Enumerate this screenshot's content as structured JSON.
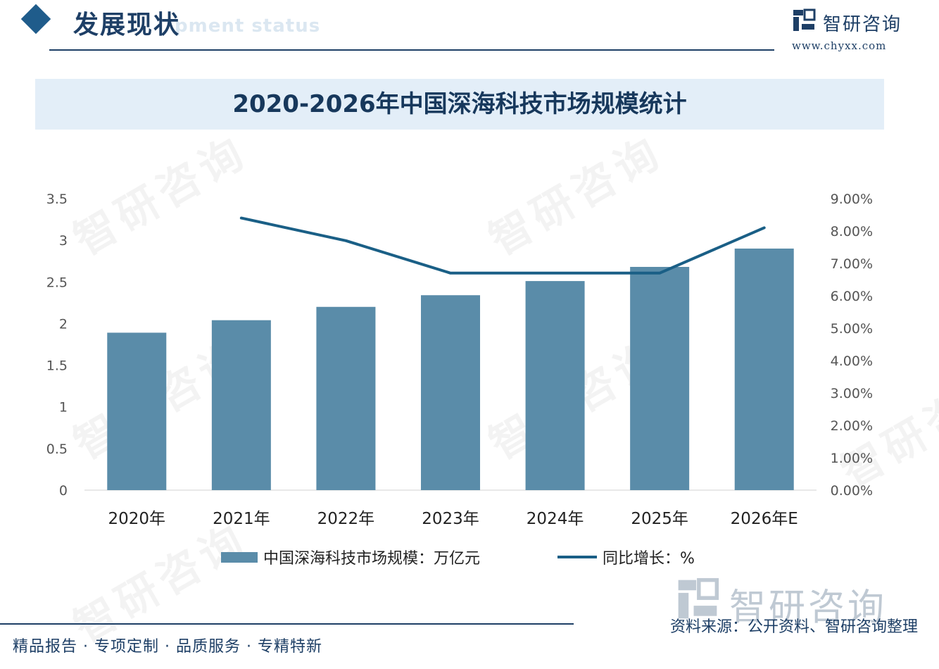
{
  "header": {
    "title": "发展现状",
    "subtitle_ghost": "pment status"
  },
  "logo": {
    "name": "智研咨询",
    "url": "www.chyxx.com"
  },
  "watermark": "智研咨询",
  "chart_data": {
    "type": "bar",
    "title": "2020-2026年中国深海科技市场规模统计",
    "categories": [
      "2020年",
      "2021年",
      "2022年",
      "2023年",
      "2024年",
      "2025年",
      "2026年E"
    ],
    "series": [
      {
        "name": "中国深海科技市场规模：万亿元",
        "type": "bar",
        "axis": "left",
        "values": [
          1.89,
          2.04,
          2.2,
          2.34,
          2.51,
          2.68,
          2.9
        ],
        "color": "#5a8ca9"
      },
      {
        "name": "同比增长：%",
        "type": "line",
        "axis": "right",
        "values": [
          null,
          8.4,
          7.7,
          6.7,
          6.7,
          6.7,
          8.1
        ],
        "color": "#1a5f86"
      }
    ],
    "y_left": {
      "ylim": [
        0,
        3.5
      ],
      "ticks": [
        "0",
        "0.5",
        "1",
        "1.5",
        "2",
        "2.5",
        "3",
        "3.5"
      ]
    },
    "y_right": {
      "ylim": [
        0,
        9
      ],
      "ticks": [
        "0.00%",
        "1.00%",
        "2.00%",
        "3.00%",
        "4.00%",
        "5.00%",
        "6.00%",
        "7.00%",
        "8.00%",
        "9.00%"
      ]
    },
    "grid": false,
    "legend": "bottom"
  },
  "footer": {
    "slogan": "精品报告 · 专项定制 · 品质服务 · 专精特新",
    "source": "资料来源：公开资料、智研咨询整理",
    "logo_name": "智研咨询"
  }
}
